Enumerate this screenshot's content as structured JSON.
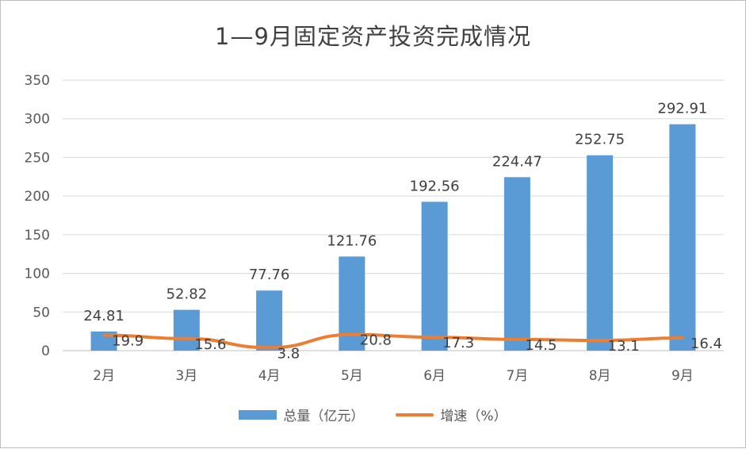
{
  "chart_data": {
    "type": "bar",
    "title": "1—9月固定资产投资完成情况",
    "categories": [
      "2月",
      "3月",
      "4月",
      "5月",
      "6月",
      "7月",
      "8月",
      "9月"
    ],
    "series": [
      {
        "name": "总量（亿元）",
        "type": "bar",
        "color": "#5b9bd5",
        "values": [
          24.81,
          52.82,
          77.76,
          121.76,
          192.56,
          224.47,
          252.75,
          292.91
        ]
      },
      {
        "name": "增速（%）",
        "type": "line",
        "color": "#ed7d31",
        "values": [
          19.9,
          15.6,
          3.8,
          20.8,
          17.3,
          14.5,
          13.1,
          16.4
        ]
      }
    ],
    "ylim": [
      0,
      350
    ],
    "yticks": [
      "0",
      "50",
      "100",
      "150",
      "200",
      "250",
      "300",
      "350"
    ],
    "grid": true,
    "legend_position": "bottom"
  }
}
